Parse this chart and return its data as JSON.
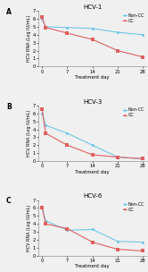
{
  "panels": [
    {
      "label": "A",
      "title": "HCV-1",
      "days": [
        0,
        1,
        7,
        14,
        21,
        28
      ],
      "nonCC": [
        6.0,
        5.0,
        4.9,
        4.8,
        4.3,
        4.0
      ],
      "CC": [
        6.2,
        4.9,
        4.2,
        3.4,
        2.0,
        1.2
      ]
    },
    {
      "label": "B",
      "title": "HCV-3",
      "days": [
        0,
        1,
        7,
        14,
        21,
        28
      ],
      "nonCC": [
        6.0,
        4.5,
        3.5,
        2.0,
        0.5,
        0.3
      ],
      "CC": [
        6.5,
        3.5,
        2.0,
        0.8,
        0.5,
        0.3
      ]
    },
    {
      "label": "C",
      "title": "HCV-6",
      "days": [
        0,
        1,
        7,
        14,
        21,
        28
      ],
      "nonCC": [
        6.0,
        4.4,
        3.2,
        3.3,
        1.8,
        1.7
      ],
      "CC": [
        6.1,
        4.0,
        3.4,
        1.7,
        0.8,
        0.6
      ]
    }
  ],
  "nonCC_color": "#6ec6e8",
  "CC_color": "#e06060",
  "nonCC_label": "Non-CC",
  "CC_label": "CC",
  "ylabel": "HCV RNA (Log IU/mL)",
  "xlabel": "Treatment day",
  "ylim": [
    0,
    7
  ],
  "yticks": [
    0,
    1,
    2,
    3,
    4,
    5,
    6,
    7
  ],
  "xticks": [
    0,
    7,
    14,
    21,
    28
  ],
  "bg_color": "#f0f0f0"
}
